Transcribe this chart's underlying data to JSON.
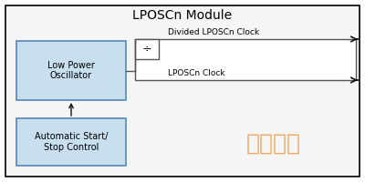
{
  "title": "LPOSCn Module",
  "bg_color": "#ffffff",
  "outer_box_color": "#000000",
  "outer_bg": "#f5f5f5",
  "lpo_box_color": "#c8dff0",
  "lpo_box_edge": "#5588bb",
  "auto_box_color": "#c8dff0",
  "auto_box_edge": "#5588bb",
  "div_box_color": "#ffffff",
  "div_box_edge": "#555555",
  "lpo_label": "Low Power\nOscillator",
  "auto_label": "Automatic Start/\nStop Control",
  "div_symbol": "÷",
  "out1_label": "Divided LPOSCn Clock",
  "out2_label": "LPOSCn Clock",
  "watermark": "统一电子",
  "watermark_color": "#f0a050",
  "title_fontsize": 10,
  "label_fontsize": 7,
  "arrow_color": "#111111",
  "line_color": "#555555",
  "lw": 1.0
}
